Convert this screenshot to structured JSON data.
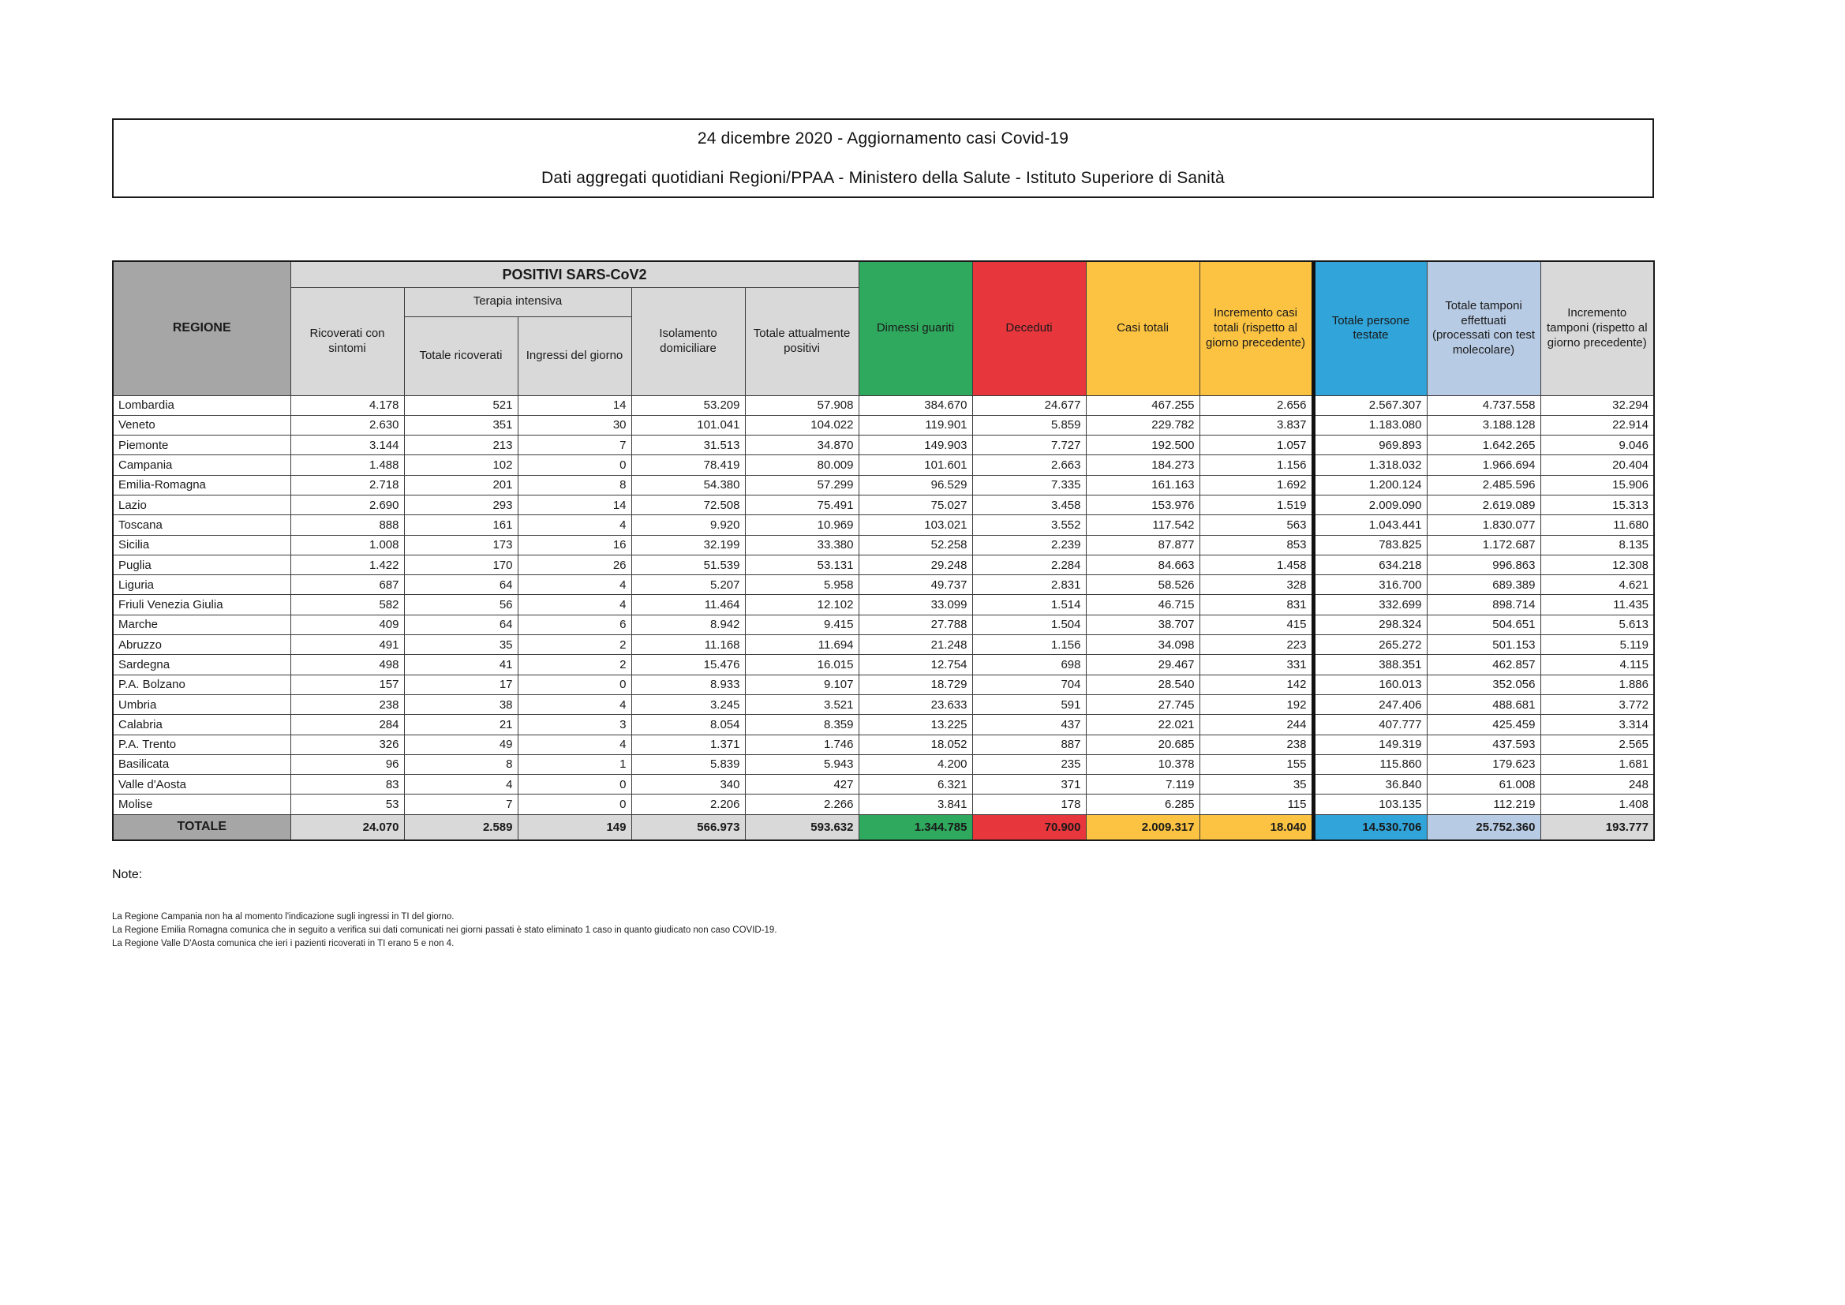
{
  "title": {
    "line1": "24 dicembre 2020 - Aggiornamento casi Covid-19",
    "line2": "Dati aggregati quotidiani Regioni/PPAA - Ministero della Salute - Istituto Superiore di Sanità"
  },
  "colors": {
    "green": "#2FA95D",
    "red": "#E8363D",
    "yellow": "#FCC342",
    "blue": "#31A5DA",
    "light_blue": "#B8CBE4",
    "light_gray": "#D9D9D9",
    "dark_gray": "#A6A6A6"
  },
  "table": {
    "headers": {
      "regione": "REGIONE",
      "positivi_group": "POSITIVI SARS-CoV2",
      "ricoverati_sintomi": "Ricoverati con sintomi",
      "terapia_group": "Terapia intensiva",
      "terapia_totale": "Totale ricoverati",
      "terapia_ingressi": "Ingressi del giorno",
      "isolamento": "Isolamento domiciliare",
      "attualmente_positivi": "Totale attualmente positivi",
      "dimessi": "Dimessi guariti",
      "deceduti": "Deceduti",
      "casi_totali": "Casi totali",
      "incremento_casi": "Incremento casi totali (rispetto al giorno precedente)",
      "persone_testate": "Totale persone testate",
      "tamponi": "Totale tamponi effettuati (processati con test molecolare)",
      "incremento_tamponi": "Incremento tamponi (rispetto al giorno precedente)"
    },
    "rows": [
      {
        "regione": "Lombardia",
        "values": [
          "4.178",
          "521",
          "14",
          "53.209",
          "57.908",
          "384.670",
          "24.677",
          "467.255",
          "2.656",
          "2.567.307",
          "4.737.558",
          "32.294"
        ]
      },
      {
        "regione": "Veneto",
        "values": [
          "2.630",
          "351",
          "30",
          "101.041",
          "104.022",
          "119.901",
          "5.859",
          "229.782",
          "3.837",
          "1.183.080",
          "3.188.128",
          "22.914"
        ]
      },
      {
        "regione": "Piemonte",
        "values": [
          "3.144",
          "213",
          "7",
          "31.513",
          "34.870",
          "149.903",
          "7.727",
          "192.500",
          "1.057",
          "969.893",
          "1.642.265",
          "9.046"
        ]
      },
      {
        "regione": "Campania",
        "values": [
          "1.488",
          "102",
          "0",
          "78.419",
          "80.009",
          "101.601",
          "2.663",
          "184.273",
          "1.156",
          "1.318.032",
          "1.966.694",
          "20.404"
        ]
      },
      {
        "regione": "Emilia-Romagna",
        "values": [
          "2.718",
          "201",
          "8",
          "54.380",
          "57.299",
          "96.529",
          "7.335",
          "161.163",
          "1.692",
          "1.200.124",
          "2.485.596",
          "15.906"
        ]
      },
      {
        "regione": "Lazio",
        "values": [
          "2.690",
          "293",
          "14",
          "72.508",
          "75.491",
          "75.027",
          "3.458",
          "153.976",
          "1.519",
          "2.009.090",
          "2.619.089",
          "15.313"
        ]
      },
      {
        "regione": "Toscana",
        "values": [
          "888",
          "161",
          "4",
          "9.920",
          "10.969",
          "103.021",
          "3.552",
          "117.542",
          "563",
          "1.043.441",
          "1.830.077",
          "11.680"
        ]
      },
      {
        "regione": "Sicilia",
        "values": [
          "1.008",
          "173",
          "16",
          "32.199",
          "33.380",
          "52.258",
          "2.239",
          "87.877",
          "853",
          "783.825",
          "1.172.687",
          "8.135"
        ]
      },
      {
        "regione": "Puglia",
        "values": [
          "1.422",
          "170",
          "26",
          "51.539",
          "53.131",
          "29.248",
          "2.284",
          "84.663",
          "1.458",
          "634.218",
          "996.863",
          "12.308"
        ]
      },
      {
        "regione": "Liguria",
        "values": [
          "687",
          "64",
          "4",
          "5.207",
          "5.958",
          "49.737",
          "2.831",
          "58.526",
          "328",
          "316.700",
          "689.389",
          "4.621"
        ]
      },
      {
        "regione": "Friuli Venezia Giulia",
        "values": [
          "582",
          "56",
          "4",
          "11.464",
          "12.102",
          "33.099",
          "1.514",
          "46.715",
          "831",
          "332.699",
          "898.714",
          "11.435"
        ]
      },
      {
        "regione": "Marche",
        "values": [
          "409",
          "64",
          "6",
          "8.942",
          "9.415",
          "27.788",
          "1.504",
          "38.707",
          "415",
          "298.324",
          "504.651",
          "5.613"
        ]
      },
      {
        "regione": "Abruzzo",
        "values": [
          "491",
          "35",
          "2",
          "11.168",
          "11.694",
          "21.248",
          "1.156",
          "34.098",
          "223",
          "265.272",
          "501.153",
          "5.119"
        ]
      },
      {
        "regione": "Sardegna",
        "values": [
          "498",
          "41",
          "2",
          "15.476",
          "16.015",
          "12.754",
          "698",
          "29.467",
          "331",
          "388.351",
          "462.857",
          "4.115"
        ]
      },
      {
        "regione": "P.A. Bolzano",
        "values": [
          "157",
          "17",
          "0",
          "8.933",
          "9.107",
          "18.729",
          "704",
          "28.540",
          "142",
          "160.013",
          "352.056",
          "1.886"
        ]
      },
      {
        "regione": "Umbria",
        "values": [
          "238",
          "38",
          "4",
          "3.245",
          "3.521",
          "23.633",
          "591",
          "27.745",
          "192",
          "247.406",
          "488.681",
          "3.772"
        ]
      },
      {
        "regione": "Calabria",
        "values": [
          "284",
          "21",
          "3",
          "8.054",
          "8.359",
          "13.225",
          "437",
          "22.021",
          "244",
          "407.777",
          "425.459",
          "3.314"
        ]
      },
      {
        "regione": "P.A. Trento",
        "values": [
          "326",
          "49",
          "4",
          "1.371",
          "1.746",
          "18.052",
          "887",
          "20.685",
          "238",
          "149.319",
          "437.593",
          "2.565"
        ]
      },
      {
        "regione": "Basilicata",
        "values": [
          "96",
          "8",
          "1",
          "5.839",
          "5.943",
          "4.200",
          "235",
          "10.378",
          "155",
          "115.860",
          "179.623",
          "1.681"
        ]
      },
      {
        "regione": "Valle d'Aosta",
        "values": [
          "83",
          "4",
          "0",
          "340",
          "427",
          "6.321",
          "371",
          "7.119",
          "35",
          "36.840",
          "61.008",
          "248"
        ]
      },
      {
        "regione": "Molise",
        "values": [
          "53",
          "7",
          "0",
          "2.206",
          "2.266",
          "3.841",
          "178",
          "6.285",
          "115",
          "103.135",
          "112.219",
          "1.408"
        ]
      }
    ],
    "totale": {
      "label": "TOTALE",
      "values": [
        "24.070",
        "2.589",
        "149",
        "566.973",
        "593.632",
        "1.344.785",
        "70.900",
        "2.009.317",
        "18.040",
        "14.530.706",
        "25.752.360",
        "193.777"
      ]
    }
  },
  "notes": {
    "title": "Note:",
    "lines": [
      "La Regione Campania non ha al momento l'indicazione sugli ingressi in TI del giorno.",
      "La Regione Emilia Romagna comunica che in seguito a verifica sui dati comunicati nei giorni passati è stato eliminato 1 caso in quanto giudicato non caso COVID-19.",
      "La Regione Valle D'Aosta comunica che ieri i pazienti ricoverati in TI erano 5 e non 4."
    ]
  }
}
